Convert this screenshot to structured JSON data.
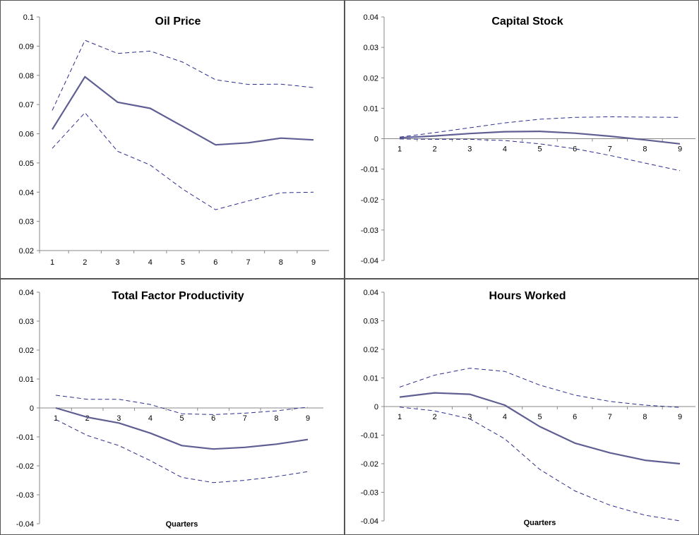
{
  "colors": {
    "line": "#5f5f93",
    "band": "#2d2d8c",
    "axis": "#888888"
  },
  "chart_data": [
    {
      "type": "line",
      "title": "Oil Price",
      "xlabel": "",
      "categories": [
        "1",
        "2",
        "3",
        "4",
        "5",
        "6",
        "7",
        "8",
        "9"
      ],
      "ylim": [
        0.02,
        0.1
      ],
      "yticks": [
        "0.02",
        "0.03",
        "0.04",
        "0.05",
        "0.06",
        "0.07",
        "0.08",
        "0.09",
        "0.1"
      ],
      "series": [
        {
          "role": "estimate",
          "values": [
            0.0615,
            0.0795,
            0.0708,
            0.0687,
            0.0625,
            0.0562,
            0.0569,
            0.0585,
            0.0579
          ]
        },
        {
          "role": "upper",
          "values": [
            0.068,
            0.092,
            0.0875,
            0.0883,
            0.0845,
            0.0785,
            0.0769,
            0.077,
            0.0758
          ]
        },
        {
          "role": "lower",
          "values": [
            0.055,
            0.0672,
            0.054,
            0.0493,
            0.041,
            0.034,
            0.037,
            0.0398,
            0.04
          ]
        }
      ]
    },
    {
      "type": "line",
      "title": "Capital Stock",
      "xlabel": "",
      "categories": [
        "1",
        "2",
        "3",
        "4",
        "5",
        "6",
        "7",
        "8",
        "9"
      ],
      "ylim": [
        -0.04,
        0.04
      ],
      "yticks": [
        "-0.04",
        "-0.03",
        "-0.02",
        "-0.01",
        "0",
        "0.01",
        "0.02",
        "0.03",
        "0.04"
      ],
      "series": [
        {
          "role": "estimate",
          "values": [
            0.0003,
            0.0009,
            0.0017,
            0.0023,
            0.0024,
            0.0018,
            0.0008,
            -0.0004,
            -0.0017
          ]
        },
        {
          "role": "upper",
          "values": [
            0.0005,
            0.002,
            0.0036,
            0.0052,
            0.0064,
            0.007,
            0.0072,
            0.0071,
            0.007
          ]
        },
        {
          "role": "lower",
          "values": [
            -0.0001,
            -0.0002,
            -0.0002,
            -0.0006,
            -0.0017,
            -0.0033,
            -0.0055,
            -0.008,
            -0.0105
          ]
        }
      ]
    },
    {
      "type": "line",
      "title": "Total Factor Productivity",
      "xlabel": "Quarters",
      "categories": [
        "1",
        "2",
        "3",
        "4",
        "5",
        "6",
        "7",
        "8",
        "9"
      ],
      "ylim": [
        -0.04,
        0.04
      ],
      "yticks": [
        "-0.04",
        "-0.03",
        "-0.02",
        "-0.01",
        "0",
        "0.01",
        "0.02",
        "0.03",
        "0.04"
      ],
      "series": [
        {
          "role": "estimate",
          "values": [
            0.0,
            -0.0032,
            -0.0052,
            -0.0087,
            -0.013,
            -0.0142,
            -0.0136,
            -0.0125,
            -0.0109
          ]
        },
        {
          "role": "upper",
          "values": [
            0.0044,
            0.003,
            0.003,
            0.0012,
            -0.002,
            -0.0023,
            -0.0018,
            -0.001,
            0.0003
          ]
        },
        {
          "role": "lower",
          "values": [
            -0.004,
            -0.0095,
            -0.013,
            -0.0182,
            -0.024,
            -0.0258,
            -0.025,
            -0.0237,
            -0.022
          ]
        }
      ]
    },
    {
      "type": "line",
      "title": "Hours Worked",
      "xlabel": "Quarters",
      "categories": [
        "1",
        "2",
        "3",
        "4",
        "5",
        "6",
        "7",
        "8",
        "9"
      ],
      "ylim": [
        -0.04,
        0.04
      ],
      "yticks": [
        "-0.04",
        "-0.03",
        "-0.02",
        "-0.01",
        "0",
        "0.01",
        "0.02",
        "0.03",
        "0.04"
      ],
      "series": [
        {
          "role": "estimate",
          "values": [
            0.0033,
            0.0048,
            0.0043,
            0.0005,
            -0.007,
            -0.0128,
            -0.0162,
            -0.0188,
            -0.02
          ]
        },
        {
          "role": "upper",
          "values": [
            0.0068,
            0.011,
            0.0134,
            0.0123,
            0.0075,
            0.004,
            0.0018,
            0.0005,
            -0.0003
          ]
        },
        {
          "role": "lower",
          "values": [
            -0.0002,
            -0.0015,
            -0.0043,
            -0.0113,
            -0.022,
            -0.0295,
            -0.0345,
            -0.038,
            -0.04
          ]
        }
      ]
    }
  ]
}
